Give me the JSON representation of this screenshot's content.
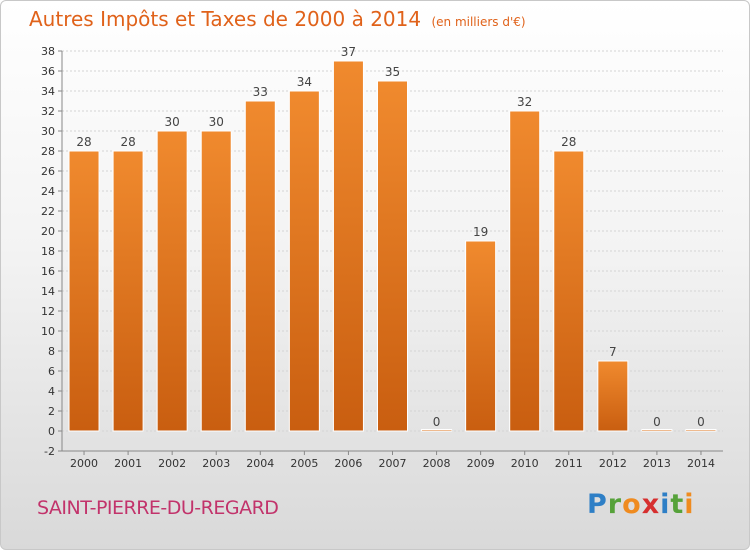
{
  "title": "Autres Impôts et Taxes de 2000 à 2014",
  "subtitle": "(en milliers d'€)",
  "commune": "SAINT-PIERRE-DU-REGARD",
  "brand": {
    "letters": [
      "P",
      "r",
      "o",
      "x",
      "i",
      "t",
      "i"
    ],
    "colors": [
      "#2e7fc6",
      "#56a23a",
      "#ef8b1f",
      "#d62f2f",
      "#2e7fc6",
      "#56a23a",
      "#ef8b1f"
    ]
  },
  "colors": {
    "bar": "#f08a2e",
    "bar_dark": "#c95e10",
    "title": "#e0621a",
    "commune": "#c2336b"
  },
  "chart_data": {
    "type": "bar",
    "categories": [
      "2000",
      "2001",
      "2002",
      "2003",
      "2004",
      "2005",
      "2006",
      "2007",
      "2008",
      "2009",
      "2010",
      "2011",
      "2012",
      "2013",
      "2014"
    ],
    "values": [
      28,
      28,
      30,
      30,
      33,
      34,
      37,
      35,
      0,
      19,
      32,
      28,
      7,
      0,
      0
    ],
    "value_labels": [
      "28",
      "28",
      "30",
      "30",
      "33",
      "34",
      "37",
      "35",
      "0",
      "19",
      "32",
      "28",
      "7",
      "0",
      "0"
    ],
    "title": "Autres Impôts et Taxes de 2000 à 2014",
    "xlabel": "",
    "ylabel": "",
    "ylim": [
      -2,
      38
    ],
    "yticks": [
      "-2",
      "0",
      "2",
      "4",
      "6",
      "8",
      "10",
      "12",
      "14",
      "16",
      "18",
      "20",
      "22",
      "24",
      "26",
      "28",
      "30",
      "32",
      "34",
      "36",
      "38"
    ],
    "grid": true
  }
}
